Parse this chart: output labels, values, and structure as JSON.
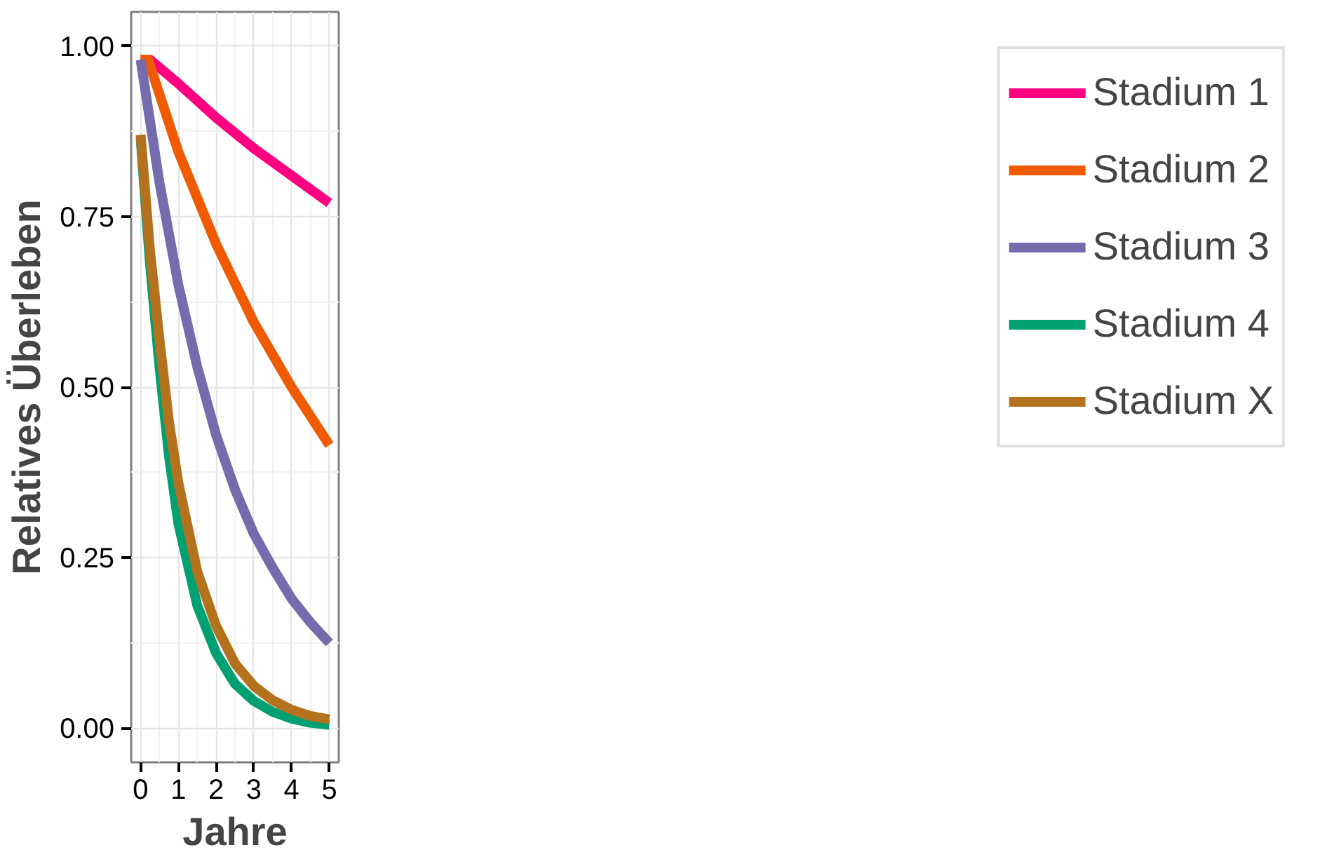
{
  "chart_data": {
    "type": "line",
    "xlabel": "Jahre",
    "ylabel": "Relatives Überleben",
    "xlim": [
      -0.25,
      5.25
    ],
    "ylim": [
      -0.05,
      1.05
    ],
    "xticks": [
      0,
      1,
      2,
      3,
      4,
      5
    ],
    "yticks": [
      {
        "value": 0,
        "label": "0.00"
      },
      {
        "value": 0.25,
        "label": "0.25"
      },
      {
        "value": 0.5,
        "label": "0.50"
      },
      {
        "value": 0.75,
        "label": "0.75"
      },
      {
        "value": 1,
        "label": "1.00"
      }
    ],
    "grid": true,
    "legend": "right",
    "line_style": "solid",
    "marker": "none",
    "series": [
      {
        "name": "Stadium 1",
        "color": "#ff0080",
        "x": [
          0,
          0.25,
          1,
          2,
          3,
          4,
          5
        ],
        "values": [
          0.98,
          0.98,
          0.945,
          0.895,
          0.85,
          0.81,
          0.77
        ]
      },
      {
        "name": "Stadium 2",
        "color": "#f05a00",
        "x": [
          0,
          0.2,
          1,
          2,
          3,
          4,
          5
        ],
        "values": [
          0.98,
          0.98,
          0.845,
          0.71,
          0.595,
          0.5,
          0.415
        ]
      },
      {
        "name": "Stadium 3",
        "color": "#746cac",
        "x": [
          0,
          0.5,
          1,
          1.5,
          2,
          2.5,
          3,
          3.5,
          4,
          4.5,
          5
        ],
        "values": [
          0.98,
          0.8,
          0.65,
          0.53,
          0.43,
          0.35,
          0.285,
          0.235,
          0.19,
          0.155,
          0.125
        ]
      },
      {
        "name": "Stadium 4",
        "color": "#00a070",
        "x": [
          0,
          0.25,
          0.5,
          0.75,
          1,
          1.5,
          2,
          2.5,
          3,
          3.5,
          4,
          4.5,
          5
        ],
        "values": [
          0.865,
          0.68,
          0.53,
          0.4,
          0.3,
          0.18,
          0.11,
          0.065,
          0.04,
          0.024,
          0.014,
          0.008,
          0.005
        ]
      },
      {
        "name": "Stadium X",
        "color": "#b5721e",
        "x": [
          0,
          0.25,
          0.5,
          0.75,
          1,
          1.5,
          2,
          2.5,
          3,
          3.5,
          4,
          4.5,
          5
        ],
        "values": [
          0.87,
          0.7,
          0.57,
          0.45,
          0.36,
          0.23,
          0.15,
          0.095,
          0.062,
          0.041,
          0.027,
          0.018,
          0.013
        ]
      }
    ]
  }
}
